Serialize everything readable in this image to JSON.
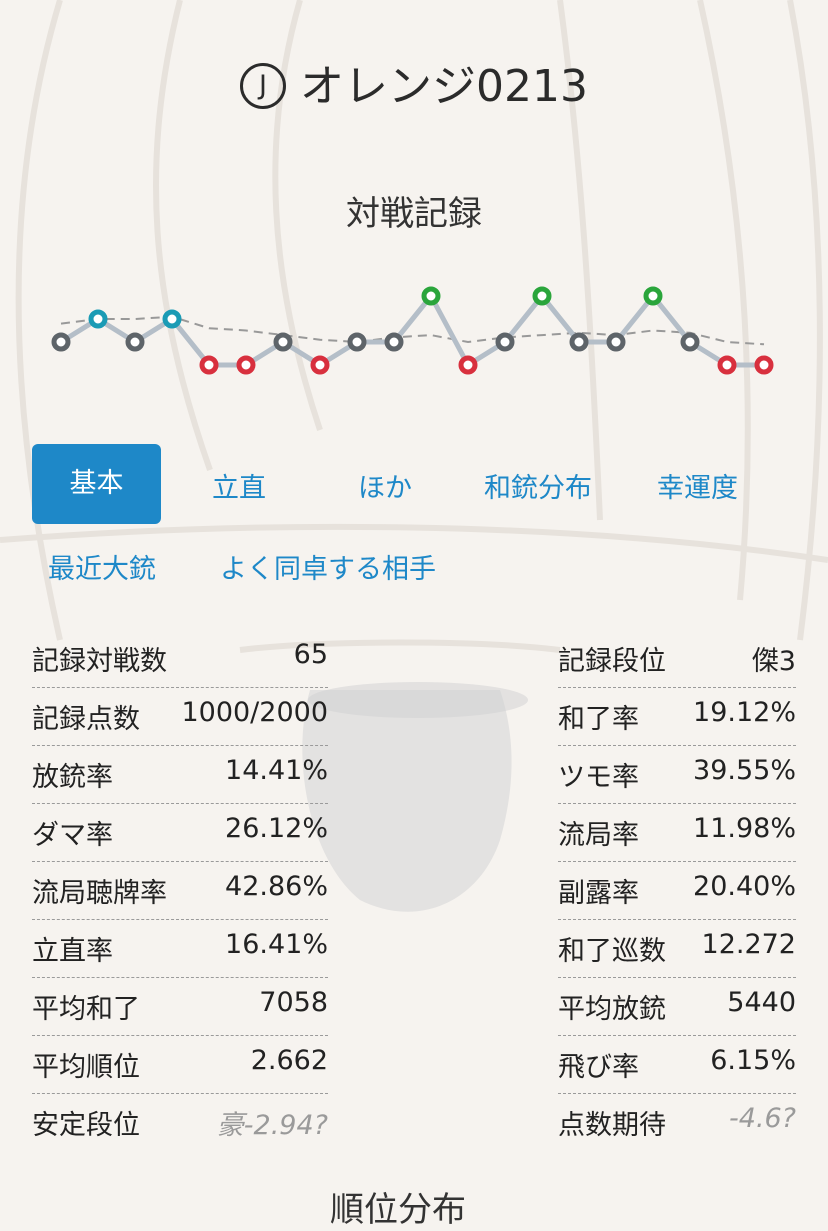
{
  "player": {
    "badge": "J",
    "name": "オレンジ0213"
  },
  "section_title": "対戦記録",
  "tabs": [
    {
      "label": "基本",
      "active": true
    },
    {
      "label": "立直",
      "active": false
    },
    {
      "label": "ほか",
      "active": false
    },
    {
      "label": "和銃分布",
      "active": false
    },
    {
      "label": "幸運度",
      "active": false
    },
    {
      "label": "最近大銃",
      "active": false
    },
    {
      "label": "よく同卓する相手",
      "active": false
    }
  ],
  "stats_left": [
    {
      "label": "記録対戦数",
      "value": "65"
    },
    {
      "label": "記録点数",
      "value": "1000/2000"
    },
    {
      "label": "放銃率",
      "value": "14.41%"
    },
    {
      "label": "ダマ率",
      "value": "26.12%"
    },
    {
      "label": "流局聴牌率",
      "value": "42.86%"
    },
    {
      "label": "立直率",
      "value": "16.41%"
    },
    {
      "label": "平均和了",
      "value": "7058"
    },
    {
      "label": "平均順位",
      "value": "2.662"
    },
    {
      "label": "安定段位",
      "value": "豪-2.94?"
    }
  ],
  "stats_right": [
    {
      "label": "記録段位",
      "value": "傑3"
    },
    {
      "label": "和了率",
      "value": "19.12%"
    },
    {
      "label": "ツモ率",
      "value": "39.55%"
    },
    {
      "label": "流局率",
      "value": "11.98%"
    },
    {
      "label": "副露率",
      "value": "20.40%"
    },
    {
      "label": "和了巡数",
      "value": "12.272"
    },
    {
      "label": "平均放銃",
      "value": "5440"
    },
    {
      "label": "飛び率",
      "value": "6.15%"
    },
    {
      "label": "点数期待",
      "value": "-4.6?"
    }
  ],
  "next_section_partial": "順位分布",
  "colors": {
    "rank1": "#2aa53b",
    "rank2": "#1a9bb5",
    "rank3": "#5e6469",
    "rank4": "#d8303e",
    "line": "#b4bec8",
    "avg_line": "#999999",
    "accent": "#1e88c8"
  },
  "chart_data": {
    "type": "line",
    "x": [
      1,
      2,
      3,
      4,
      5,
      6,
      7,
      8,
      9,
      10,
      11,
      12,
      13,
      14,
      15,
      16,
      17,
      18,
      19,
      20
    ],
    "series": [
      {
        "values": [
          3,
          2,
          3,
          2,
          4,
          4,
          3,
          4,
          3,
          3,
          1,
          4,
          3,
          1,
          3,
          3,
          1,
          3,
          4,
          4
        ]
      },
      {
        "values": [
          2.2,
          2.0,
          2.0,
          1.9,
          2.4,
          2.5,
          2.7,
          2.9,
          3.0,
          2.8,
          2.7,
          3.0,
          2.8,
          2.7,
          2.6,
          2.7,
          2.5,
          2.6,
          3.0,
          3.1
        ]
      }
    ],
    "ylim": [
      1,
      4
    ],
    "y_inverted": true,
    "grid": false
  }
}
